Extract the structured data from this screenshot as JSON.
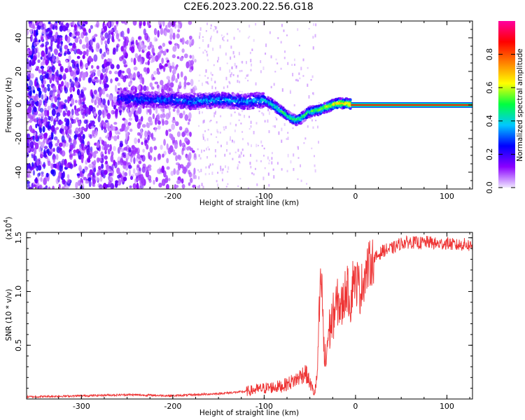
{
  "title": "C2E6.2023.200.22.56.G18",
  "chart_data": [
    {
      "type": "heatmap",
      "xlabel": "Height of straight line (km)",
      "ylabel": "Frequency (Hz)",
      "xlim": [
        -360,
        128
      ],
      "ylim": [
        -50,
        50
      ],
      "xticks": [
        -300,
        -200,
        -100,
        0,
        100
      ],
      "yticks": [
        -40,
        -20,
        0,
        20,
        40
      ],
      "xtick_labels": [
        "-300",
        "-200",
        "-100",
        "0",
        "100"
      ],
      "ytick_labels": [
        "-40",
        "-20",
        "0",
        "20",
        "40"
      ],
      "colorbar": {
        "label": "Normalized spectral amplitude",
        "range": [
          0.0,
          1.0
        ],
        "ticks": [
          0.0,
          0.2,
          0.4,
          0.6,
          0.8
        ],
        "tick_labels": [
          "0.0",
          "0.2",
          "0.4",
          "0.6",
          "0.8"
        ],
        "colors": [
          "#f0e8ff",
          "#8a00ff",
          "#0000ff",
          "#00c8ff",
          "#00ff40",
          "#ffff00",
          "#ff8000",
          "#ff0000",
          "#ff00a0"
        ]
      },
      "noise_region_x": [
        -360,
        -175
      ],
      "signal_track": {
        "x": [
          -260,
          -230,
          -200,
          -180,
          -150,
          -120,
          -100,
          -90,
          -80,
          -70,
          -65,
          -60,
          -50,
          -40,
          -30,
          -20,
          -10,
          0,
          20,
          60,
          100,
          128
        ],
        "frequency": [
          4,
          3,
          3,
          2,
          3,
          2,
          3,
          0,
          -4,
          -8,
          -9,
          -8,
          -4,
          -3,
          -1,
          1,
          1,
          0,
          0,
          0,
          0,
          0
        ],
        "amplitude": [
          0.25,
          0.3,
          0.3,
          0.35,
          0.35,
          0.35,
          0.4,
          0.45,
          0.5,
          0.5,
          0.5,
          0.5,
          0.5,
          0.55,
          0.65,
          0.7,
          0.7,
          0.85,
          0.85,
          0.85,
          0.85,
          0.85
        ]
      },
      "grid": false
    },
    {
      "type": "line",
      "xlabel": "Height of straight line (km)",
      "ylabel": "SNR (10 * v/v)",
      "yscale_label": "(x10",
      "yscale_exp": "4",
      "yscale_close": ")",
      "xlim": [
        -360,
        128
      ],
      "ylim": [
        0,
        1.55
      ],
      "xticks": [
        -300,
        -200,
        -100,
        0,
        100
      ],
      "yticks": [
        0.5,
        1.0,
        1.5
      ],
      "xtick_labels": [
        "-300",
        "-200",
        "-100",
        "0",
        "100"
      ],
      "ytick_labels": [
        "0.5",
        "1.0",
        "1.5"
      ],
      "series": [
        {
          "color": "#ee3333",
          "x": [
            -360,
            -300,
            -250,
            -200,
            -150,
            -120,
            -100,
            -80,
            -65,
            -55,
            -50,
            -45,
            -42,
            -40,
            -38,
            -36,
            -35,
            -33,
            -30,
            -25,
            -20,
            -15,
            -10,
            -5,
            -2,
            0,
            2,
            5,
            10,
            15,
            20,
            30,
            40,
            50,
            60,
            70,
            80,
            90,
            100,
            110,
            120,
            128
          ],
          "y": [
            0.02,
            0.03,
            0.04,
            0.03,
            0.05,
            0.07,
            0.1,
            0.12,
            0.18,
            0.25,
            0.15,
            0.05,
            0.2,
            0.7,
            1.1,
            0.9,
            0.5,
            0.3,
            0.6,
            0.75,
            0.9,
            0.85,
            1.05,
            0.9,
            1.2,
            1.05,
            1.1,
            1.0,
            1.15,
            1.25,
            1.3,
            1.38,
            1.4,
            1.45,
            1.46,
            1.45,
            1.46,
            1.44,
            1.45,
            1.43,
            1.44,
            1.42
          ]
        }
      ],
      "grid": false
    }
  ]
}
